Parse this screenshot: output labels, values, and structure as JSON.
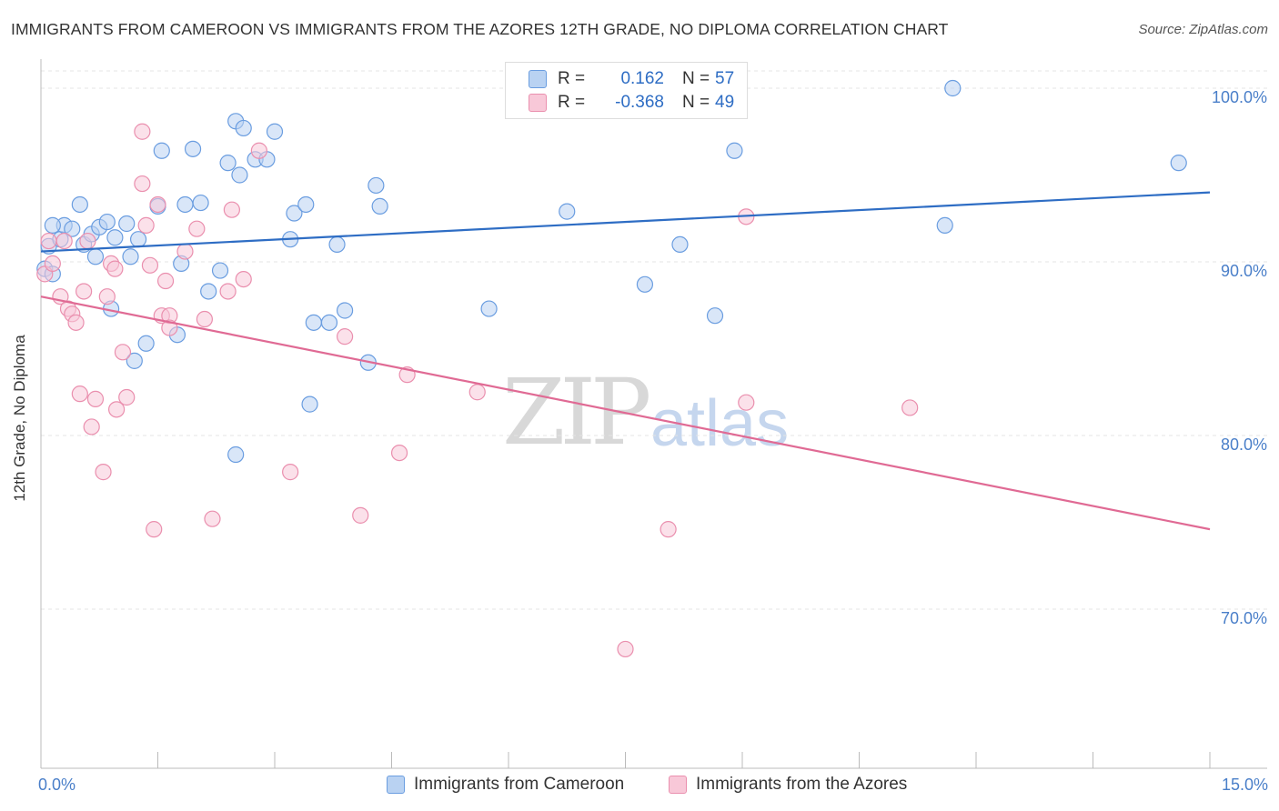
{
  "title": "IMMIGRANTS FROM CAMEROON VS IMMIGRANTS FROM THE AZORES 12TH GRADE, NO DIPLOMA CORRELATION CHART",
  "source": "Source: ZipAtlas.com",
  "watermark": {
    "zip": "ZIP",
    "atlas": "atlas"
  },
  "legend": {
    "rows": [
      {
        "r_label": "R =",
        "r_value": "0.162",
        "n_label": "N =",
        "n_value": "57",
        "color": "#aac7ee"
      },
      {
        "r_label": "R =",
        "r_value": "-0.368",
        "n_label": "N =",
        "n_value": "49",
        "color": "#f6bdd0"
      }
    ]
  },
  "bottom_legend": [
    "Immigrants from Cameroon",
    "Immigrants from the Azores"
  ],
  "chart_data": {
    "type": "scatter",
    "title": "IMMIGRANTS FROM CAMEROON VS IMMIGRANTS FROM THE AZORES 12TH GRADE, NO DIPLOMA CORRELATION CHART",
    "xlabel": "",
    "ylabel": "12th Grade, No Diploma",
    "xlim": [
      0,
      15
    ],
    "ylim": [
      61,
      101
    ],
    "x_tick_labels": [
      "0.0%",
      "15.0%"
    ],
    "y_ticks": [
      70,
      80,
      90,
      100
    ],
    "y_tick_labels": [
      "70.0%",
      "80.0%",
      "90.0%",
      "100.0%"
    ],
    "grid": true,
    "legend_position": "top-center",
    "series": [
      {
        "name": "Immigrants from Cameroon",
        "color": "#6a9de0",
        "fill": "#b9d2f2",
        "trend": {
          "x": [
            0,
            15
          ],
          "y": [
            90.6,
            94.0
          ],
          "color": "#2e6dc4"
        },
        "points": [
          [
            0.05,
            89.6
          ],
          [
            0.1,
            90.9
          ],
          [
            0.15,
            89.3
          ],
          [
            0.25,
            91.3
          ],
          [
            0.3,
            92.1
          ],
          [
            0.4,
            91.9
          ],
          [
            0.5,
            93.3
          ],
          [
            0.55,
            91.0
          ],
          [
            0.65,
            91.6
          ],
          [
            0.75,
            92.0
          ],
          [
            0.85,
            92.3
          ],
          [
            0.95,
            91.4
          ],
          [
            1.1,
            92.2
          ],
          [
            1.25,
            91.3
          ],
          [
            0.9,
            87.3
          ],
          [
            1.2,
            84.3
          ],
          [
            1.35,
            85.3
          ],
          [
            1.5,
            93.2
          ],
          [
            1.55,
            96.4
          ],
          [
            1.75,
            85.8
          ],
          [
            1.8,
            89.9
          ],
          [
            1.85,
            93.3
          ],
          [
            1.95,
            96.5
          ],
          [
            2.05,
            93.4
          ],
          [
            2.15,
            88.3
          ],
          [
            2.3,
            89.5
          ],
          [
            2.4,
            95.7
          ],
          [
            2.5,
            98.1
          ],
          [
            2.5,
            78.9
          ],
          [
            2.55,
            95.0
          ],
          [
            2.6,
            97.7
          ],
          [
            2.75,
            95.9
          ],
          [
            2.9,
            95.9
          ],
          [
            3.0,
            97.5
          ],
          [
            3.2,
            91.3
          ],
          [
            3.25,
            92.8
          ],
          [
            3.4,
            93.3
          ],
          [
            3.45,
            81.8
          ],
          [
            3.5,
            86.5
          ],
          [
            3.7,
            86.5
          ],
          [
            3.8,
            91.0
          ],
          [
            3.9,
            87.2
          ],
          [
            4.2,
            84.2
          ],
          [
            4.3,
            94.4
          ],
          [
            4.35,
            93.2
          ],
          [
            5.75,
            87.3
          ],
          [
            6.75,
            92.9
          ],
          [
            7.75,
            88.7
          ],
          [
            8.2,
            91.0
          ],
          [
            8.65,
            86.9
          ],
          [
            8.9,
            96.4
          ],
          [
            11.6,
            92.1
          ],
          [
            11.7,
            100.0
          ],
          [
            14.6,
            95.7
          ],
          [
            0.15,
            92.1
          ],
          [
            0.7,
            90.3
          ],
          [
            1.15,
            90.3
          ]
        ]
      },
      {
        "name": "Immigrants from the Azores",
        "color": "#ea8fae",
        "fill": "#f8c8d8",
        "trend": {
          "x": [
            0,
            15
          ],
          "y": [
            88.0,
            74.6
          ],
          "color": "#e06a94"
        },
        "points": [
          [
            0.05,
            89.3
          ],
          [
            0.1,
            91.2
          ],
          [
            0.15,
            89.9
          ],
          [
            0.25,
            88.0
          ],
          [
            0.3,
            91.2
          ],
          [
            0.35,
            87.3
          ],
          [
            0.4,
            87.0
          ],
          [
            0.45,
            86.5
          ],
          [
            0.5,
            82.4
          ],
          [
            0.55,
            88.3
          ],
          [
            0.6,
            91.2
          ],
          [
            0.65,
            80.5
          ],
          [
            0.7,
            82.1
          ],
          [
            0.8,
            77.9
          ],
          [
            0.85,
            88.0
          ],
          [
            0.9,
            89.9
          ],
          [
            0.95,
            89.6
          ],
          [
            0.97,
            81.5
          ],
          [
            1.05,
            84.8
          ],
          [
            1.1,
            82.2
          ],
          [
            1.3,
            94.5
          ],
          [
            1.3,
            97.5
          ],
          [
            1.35,
            92.1
          ],
          [
            1.4,
            89.8
          ],
          [
            1.45,
            74.6
          ],
          [
            1.5,
            93.3
          ],
          [
            1.55,
            86.9
          ],
          [
            1.6,
            88.9
          ],
          [
            1.65,
            86.9
          ],
          [
            1.65,
            86.2
          ],
          [
            1.85,
            90.6
          ],
          [
            2.0,
            91.9
          ],
          [
            2.1,
            86.7
          ],
          [
            2.2,
            75.2
          ],
          [
            2.4,
            88.3
          ],
          [
            2.45,
            93.0
          ],
          [
            2.6,
            89.0
          ],
          [
            2.8,
            96.4
          ],
          [
            3.2,
            77.9
          ],
          [
            3.9,
            85.7
          ],
          [
            4.1,
            75.4
          ],
          [
            4.6,
            79.0
          ],
          [
            4.7,
            83.5
          ],
          [
            5.6,
            82.5
          ],
          [
            8.05,
            74.6
          ],
          [
            7.5,
            67.7
          ],
          [
            9.05,
            92.6
          ],
          [
            9.05,
            81.9
          ],
          [
            11.15,
            81.6
          ]
        ]
      }
    ]
  }
}
